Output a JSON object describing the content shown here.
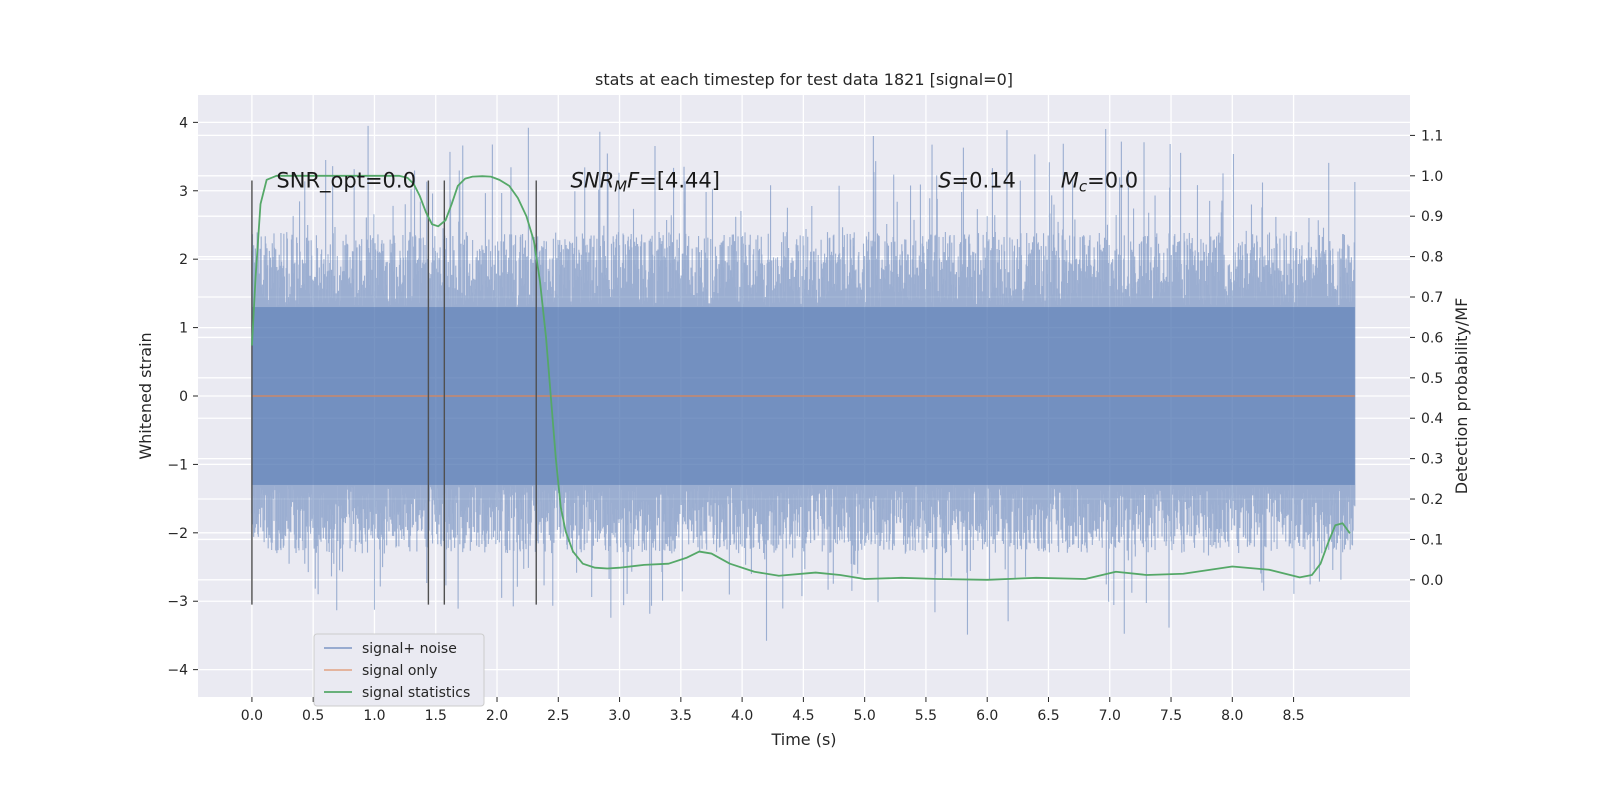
{
  "chart_data": {
    "type": "line",
    "title": "stats at each timestep for test data 1821 [signal=0]",
    "xlabel": "Time (s)",
    "ylabel": "Whitened strain",
    "ylabel_right": "Detection probability/MF",
    "xlim": [
      -0.44,
      9.45
    ],
    "ylim": [
      -4.4,
      4.4
    ],
    "ylim_right": [
      -0.29,
      1.2
    ],
    "x_ticks": [
      0.0,
      0.5,
      1.0,
      1.5,
      2.0,
      2.5,
      3.0,
      3.5,
      4.0,
      4.5,
      5.0,
      5.5,
      6.0,
      6.5,
      7.0,
      7.5,
      8.0,
      8.5
    ],
    "x_tick_labels": [
      "0.0",
      "0.5",
      "1.0",
      "1.5",
      "2.0",
      "2.5",
      "3.0",
      "3.5",
      "4.0",
      "4.5",
      "5.0",
      "5.5",
      "6.0",
      "6.5",
      "7.0",
      "7.5",
      "8.0",
      "8.5"
    ],
    "y_ticks": [
      4,
      3,
      2,
      1,
      0,
      -1,
      -2,
      -3,
      -4
    ],
    "y_tick_labels": [
      "4",
      "3",
      "2",
      "1",
      "0",
      "−1",
      "−2",
      "−3",
      "−4"
    ],
    "y_right_ticks": [
      1.1,
      1.0,
      0.9,
      0.8,
      0.7,
      0.6,
      0.5,
      0.4,
      0.3,
      0.2,
      0.1,
      0.0
    ],
    "y_right_tick_labels": [
      "1.1",
      "1.0",
      "0.9",
      "0.8",
      "0.7",
      "0.6",
      "0.5",
      "0.4",
      "0.3",
      "0.2",
      "0.1",
      "0.0"
    ],
    "grid": true,
    "legend_position": "lower-left",
    "series": [
      {
        "name": "signal+ noise",
        "color": "#4c72b0",
        "axis": "left",
        "x_range": [
          0.0,
          9.0
        ],
        "envelope": {
          "typical_max": 1.3,
          "typical_min": -1.3,
          "peak_max": 4.0,
          "peak_min": -3.6
        }
      },
      {
        "name": "signal only",
        "color": "#dd8452",
        "axis": "left",
        "x": [
          0.0,
          9.0
        ],
        "y": [
          0.0,
          0.0
        ]
      },
      {
        "name": "signal statistics",
        "color": "#55a868",
        "axis": "right",
        "x": [
          0.0,
          0.03,
          0.07,
          0.12,
          0.2,
          0.3,
          0.5,
          0.8,
          1.0,
          1.2,
          1.27,
          1.32,
          1.37,
          1.42,
          1.47,
          1.52,
          1.58,
          1.63,
          1.68,
          1.74,
          1.8,
          1.88,
          1.95,
          2.02,
          2.1,
          2.17,
          2.24,
          2.3,
          2.35,
          2.4,
          2.44,
          2.48,
          2.52,
          2.56,
          2.62,
          2.7,
          2.8,
          2.9,
          3.0,
          3.2,
          3.4,
          3.55,
          3.65,
          3.75,
          3.9,
          4.1,
          4.3,
          4.6,
          4.8,
          5.0,
          5.3,
          5.6,
          6.0,
          6.4,
          6.8,
          7.05,
          7.3,
          7.6,
          8.0,
          8.3,
          8.55,
          8.65,
          8.72,
          8.78,
          8.84,
          8.9,
          8.96
        ],
        "y": [
          0.58,
          0.75,
          0.93,
          0.99,
          1.0,
          1.0,
          1.0,
          1.0,
          1.0,
          1.0,
          0.995,
          0.98,
          0.95,
          0.91,
          0.88,
          0.875,
          0.89,
          0.93,
          0.975,
          0.993,
          0.998,
          0.999,
          0.998,
          0.99,
          0.975,
          0.945,
          0.9,
          0.84,
          0.74,
          0.6,
          0.45,
          0.3,
          0.18,
          0.12,
          0.07,
          0.04,
          0.03,
          0.028,
          0.03,
          0.037,
          0.04,
          0.055,
          0.07,
          0.065,
          0.04,
          0.02,
          0.01,
          0.018,
          0.012,
          0.002,
          0.005,
          0.002,
          0.0,
          0.005,
          0.002,
          0.02,
          0.012,
          0.015,
          0.033,
          0.025,
          0.006,
          0.012,
          0.04,
          0.09,
          0.135,
          0.14,
          0.115
        ]
      }
    ],
    "vertical_lines": {
      "x": [
        0.0,
        1.44,
        1.57,
        2.32
      ],
      "y_range": [
        -3.05,
        3.15
      ],
      "color": "#505050"
    },
    "annotations": [
      {
        "text": "SNR_opt=0.0",
        "x": 0.2,
        "y": 3.15
      },
      {
        "text_base": "SNR",
        "text_sub": "M",
        "text_mid": "F=[4.44]",
        "x": 2.6,
        "y": 3.15
      },
      {
        "text_base": "S",
        "text_rest": "=0.14",
        "x": 5.6,
        "y": 3.15
      },
      {
        "text_base": "M",
        "text_sub": "c",
        "text_rest": "=0.0",
        "x": 6.6,
        "y": 3.15
      }
    ]
  }
}
